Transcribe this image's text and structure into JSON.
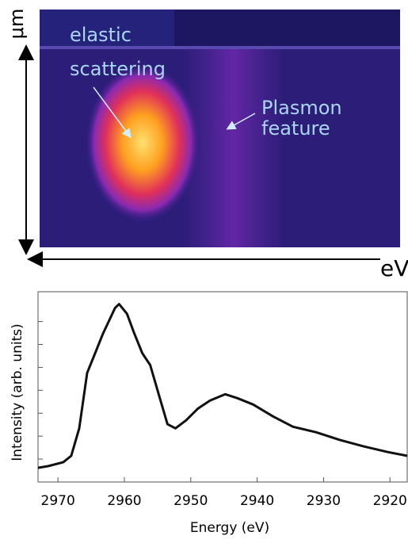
{
  "image": {
    "y_axis_label": "μm",
    "x_axis_label": "eV",
    "annotations": [
      [
        "elastic",
        "scattering"
      ],
      [
        "Plasmon",
        "feature"
      ]
    ]
  },
  "chart_data": {
    "type": "line",
    "x_label": "Energy (eV)",
    "y_label": "Intensity (arb. units)",
    "x": [
      2973,
      2971.5,
      2969.2,
      2968,
      2966.8,
      2965.6,
      2964.4,
      2963.2,
      2961.4,
      2960.8,
      2959.6,
      2958.5,
      2957.3,
      2956.1,
      2954.9,
      2953.5,
      2952.3,
      2950.7,
      2948.9,
      2947.1,
      2944.8,
      2943,
      2940.6,
      2937.6,
      2934.6,
      2931.1,
      2927.5,
      2923.9,
      2920.4,
      2917.4
    ],
    "values": [
      0.62,
      0.69,
      0.86,
      1.14,
      2.34,
      4.76,
      5.62,
      6.48,
      7.59,
      7.76,
      7.34,
      6.48,
      5.62,
      5.1,
      3.9,
      2.52,
      2.34,
      2.69,
      3.21,
      3.55,
      3.83,
      3.66,
      3.38,
      2.86,
      2.41,
      2.17,
      1.83,
      1.55,
      1.31,
      1.14
    ],
    "color": "#111111",
    "xlim": [
      2973,
      2917.4
    ],
    "xticks": [
      2970,
      2960,
      2950,
      2940,
      2930,
      2920
    ],
    "ylim": [
      0,
      8.3
    ],
    "yticks": [
      1,
      2,
      3,
      4,
      5,
      6,
      7
    ]
  }
}
